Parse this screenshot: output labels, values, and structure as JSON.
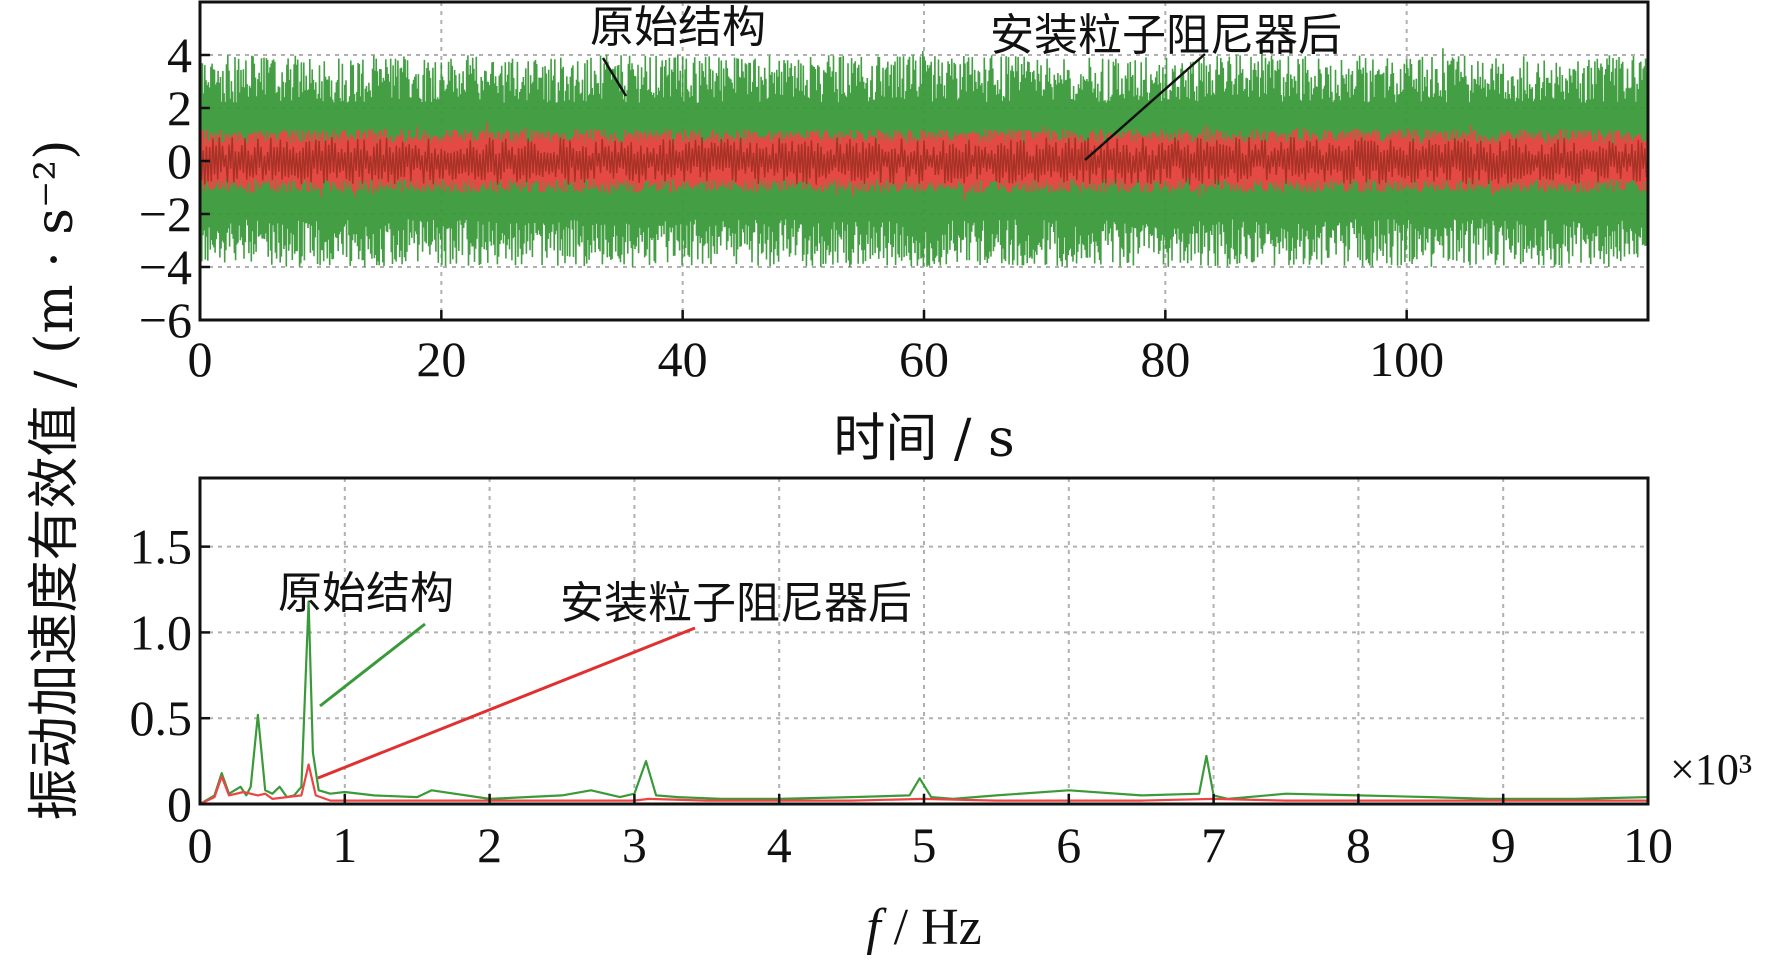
{
  "chart_data": [
    {
      "type": "line",
      "title": "",
      "xlabel": "时间 / s",
      "ylabel": "振动加速度有效值 / (m · s⁻²)",
      "xlim": [
        0,
        120
      ],
      "ylim": [
        -6,
        6
      ],
      "xticks": [
        0,
        20,
        40,
        60,
        80,
        100
      ],
      "yticks": [
        4,
        2,
        0,
        -2,
        -4,
        -6
      ],
      "x_tick_labels": [
        "0",
        "20",
        "40",
        "60",
        "80",
        "100"
      ],
      "y_tick_labels": [
        "4",
        "2",
        "0",
        "−2",
        "−4",
        "−6"
      ],
      "grid": true,
      "series": [
        {
          "name": "原始结构",
          "color": "#3a9a3a",
          "approx_amplitude": 4.0,
          "approx_peak": 4.5
        },
        {
          "name": "安装粒子阻尼器后",
          "color": "#ee4444",
          "approx_amplitude": 1.2,
          "approx_peak": 1.5
        }
      ],
      "annotations": [
        {
          "text": "原始结构",
          "points_to": "原始结构"
        },
        {
          "text": "安装粒子阻尼器后",
          "points_to": "安装粒子阻尼器后"
        }
      ]
    },
    {
      "type": "line",
      "title": "",
      "xlabel": "f / Hz",
      "xlabel_parts": {
        "var": "f",
        "unit": " / Hz"
      },
      "ylabel": "振动加速度有效值 / (m · s⁻²)",
      "xlim": [
        0,
        10
      ],
      "ylim": [
        0,
        1.9
      ],
      "x_multiplier": "×10³",
      "xticks": [
        0,
        1,
        2,
        3,
        4,
        5,
        6,
        7,
        8,
        9,
        10
      ],
      "yticks": [
        0,
        0.5,
        1.0,
        1.5
      ],
      "x_tick_labels": [
        "0",
        "1",
        "2",
        "3",
        "4",
        "5",
        "6",
        "7",
        "8",
        "9",
        "10"
      ],
      "y_tick_labels": [
        "0",
        "0.5",
        "1.0",
        "1.5"
      ],
      "grid": true,
      "series": [
        {
          "name": "原始结构",
          "color": "#3a9a3a",
          "x": [
            0,
            0.1,
            0.15,
            0.2,
            0.28,
            0.32,
            0.35,
            0.4,
            0.45,
            0.5,
            0.55,
            0.6,
            0.65,
            0.7,
            0.75,
            0.78,
            0.82,
            0.9,
            1.0,
            1.2,
            1.5,
            1.6,
            2.0,
            2.5,
            2.7,
            2.9,
            3.0,
            3.08,
            3.15,
            3.3,
            3.6,
            4.0,
            4.5,
            4.9,
            4.97,
            5.05,
            5.2,
            5.5,
            6.0,
            6.5,
            6.9,
            6.95,
            7.0,
            7.1,
            7.5,
            8.0,
            8.5,
            8.9,
            9.5,
            10.0
          ],
          "y": [
            0.0,
            0.05,
            0.18,
            0.06,
            0.1,
            0.05,
            0.1,
            0.52,
            0.08,
            0.06,
            0.1,
            0.04,
            0.05,
            0.1,
            1.18,
            0.3,
            0.08,
            0.06,
            0.07,
            0.05,
            0.04,
            0.08,
            0.03,
            0.05,
            0.08,
            0.04,
            0.06,
            0.25,
            0.05,
            0.04,
            0.03,
            0.03,
            0.04,
            0.05,
            0.15,
            0.04,
            0.03,
            0.05,
            0.08,
            0.05,
            0.06,
            0.28,
            0.05,
            0.03,
            0.06,
            0.05,
            0.04,
            0.03,
            0.03,
            0.04
          ]
        },
        {
          "name": "安装粒子阻尼器后",
          "color": "#ee4444",
          "x": [
            0,
            0.1,
            0.15,
            0.2,
            0.3,
            0.4,
            0.45,
            0.5,
            0.6,
            0.7,
            0.75,
            0.8,
            0.9,
            1.0,
            1.5,
            2.0,
            2.5,
            3.0,
            3.1,
            3.5,
            4.0,
            4.5,
            5.0,
            5.5,
            6.0,
            6.5,
            7.0,
            7.5,
            8.0,
            8.5,
            9.0,
            9.5,
            10.0
          ],
          "y": [
            0.0,
            0.04,
            0.16,
            0.05,
            0.07,
            0.05,
            0.06,
            0.03,
            0.04,
            0.05,
            0.23,
            0.05,
            0.02,
            0.02,
            0.02,
            0.02,
            0.02,
            0.02,
            0.03,
            0.02,
            0.02,
            0.02,
            0.03,
            0.02,
            0.02,
            0.02,
            0.03,
            0.02,
            0.02,
            0.02,
            0.02,
            0.02,
            0.02
          ]
        }
      ],
      "annotations": [
        {
          "text": "原始结构",
          "points_to": "原始结构"
        },
        {
          "text": "安装粒子阻尼器后",
          "points_to": "安装粒子阻尼器后"
        }
      ]
    }
  ]
}
